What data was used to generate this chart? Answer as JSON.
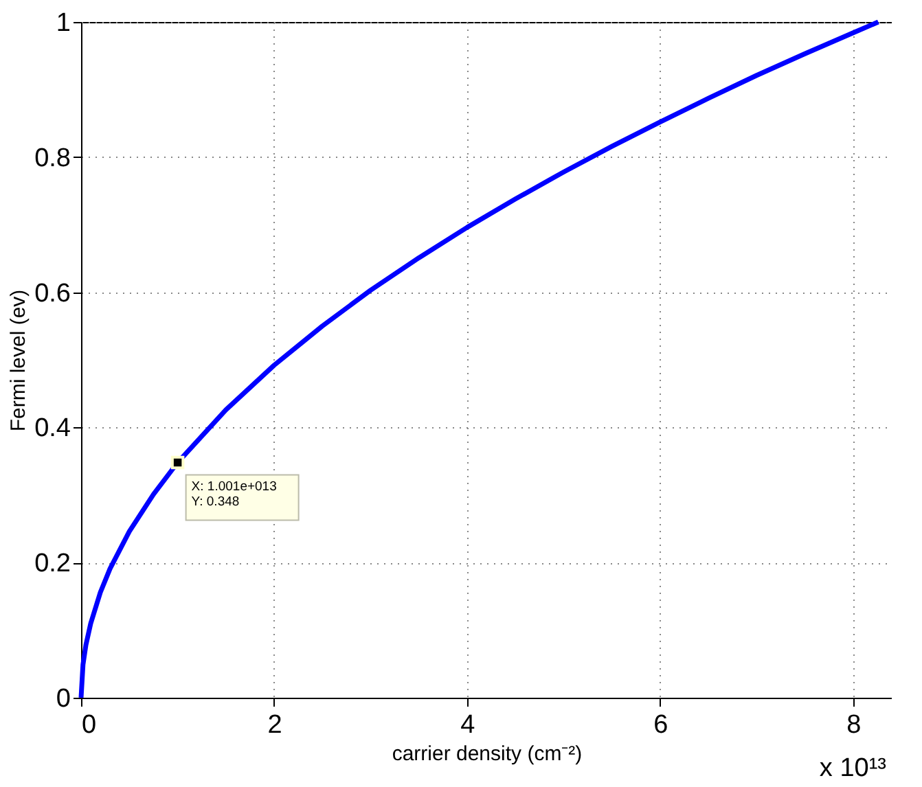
{
  "chart_data": {
    "type": "line",
    "xlabel": "carrier density (cm⁻²)",
    "ylabel": "Fermi level (ev)",
    "x": [
      0,
      0.02,
      0.05,
      0.1,
      0.2,
      0.3,
      0.5,
      0.75,
      1.0,
      1.5,
      2,
      2.5,
      3,
      3.5,
      4,
      4.5,
      5,
      5.5,
      6,
      6.5,
      7,
      7.5,
      8,
      8.26
    ],
    "series": [
      {
        "color": "#0000ff",
        "values": [
          0,
          0.049,
          0.078,
          0.11,
          0.156,
          0.191,
          0.246,
          0.301,
          0.348,
          0.426,
          0.492,
          0.55,
          0.603,
          0.651,
          0.696,
          0.738,
          0.778,
          0.816,
          0.852,
          0.887,
          0.921,
          0.953,
          0.984,
          1.0
        ]
      }
    ],
    "xlim": [
      0,
      8.4
    ],
    "xticks": [
      0,
      2,
      4,
      6,
      8
    ],
    "ylim": [
      0,
      1
    ],
    "yticks": [
      0,
      0.2,
      0.4,
      0.6,
      0.8,
      1
    ],
    "grid": true,
    "line_style": "solid",
    "marker": "none",
    "annotations": [
      "x 10¹³",
      {
        "text": "X: 1.001e+013\nY: 0.348",
        "x": 1.001,
        "y": 0.348
      }
    ]
  }
}
